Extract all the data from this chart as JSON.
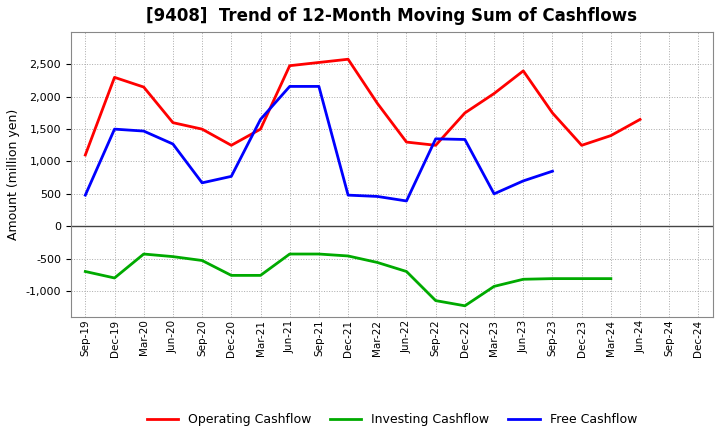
{
  "title": "[9408]  Trend of 12-Month Moving Sum of Cashflows",
  "ylabel": "Amount (million yen)",
  "x_labels": [
    "Sep-19",
    "Dec-19",
    "Mar-20",
    "Jun-20",
    "Sep-20",
    "Dec-20",
    "Mar-21",
    "Jun-21",
    "Sep-21",
    "Dec-21",
    "Mar-22",
    "Jun-22",
    "Sep-22",
    "Dec-22",
    "Mar-23",
    "Jun-23",
    "Sep-23",
    "Dec-23",
    "Mar-24",
    "Jun-24",
    "Sep-24",
    "Dec-24"
  ],
  "operating": [
    1100,
    2300,
    2150,
    1600,
    1500,
    1250,
    1500,
    2480,
    2530,
    2580,
    1900,
    1300,
    1250,
    1750,
    2050,
    2400,
    1750,
    1250,
    1400,
    1650,
    null,
    null
  ],
  "investing": [
    -700,
    -800,
    -430,
    -470,
    -530,
    -760,
    -760,
    -430,
    -430,
    -460,
    -560,
    -700,
    -1150,
    -1230,
    -930,
    -820,
    -810,
    -810,
    -810,
    null,
    null,
    null
  ],
  "free": [
    480,
    1500,
    1470,
    1270,
    670,
    770,
    1650,
    2160,
    2160,
    480,
    460,
    390,
    1350,
    1340,
    500,
    700,
    850,
    null,
    null,
    null,
    null,
    null
  ],
  "operating_color": "#ff0000",
  "investing_color": "#00aa00",
  "free_color": "#0000ff",
  "ylim": [
    -1400,
    3000
  ],
  "yticks": [
    -1000,
    -500,
    0,
    500,
    1000,
    1500,
    2000,
    2500
  ],
  "background_color": "#ffffff"
}
